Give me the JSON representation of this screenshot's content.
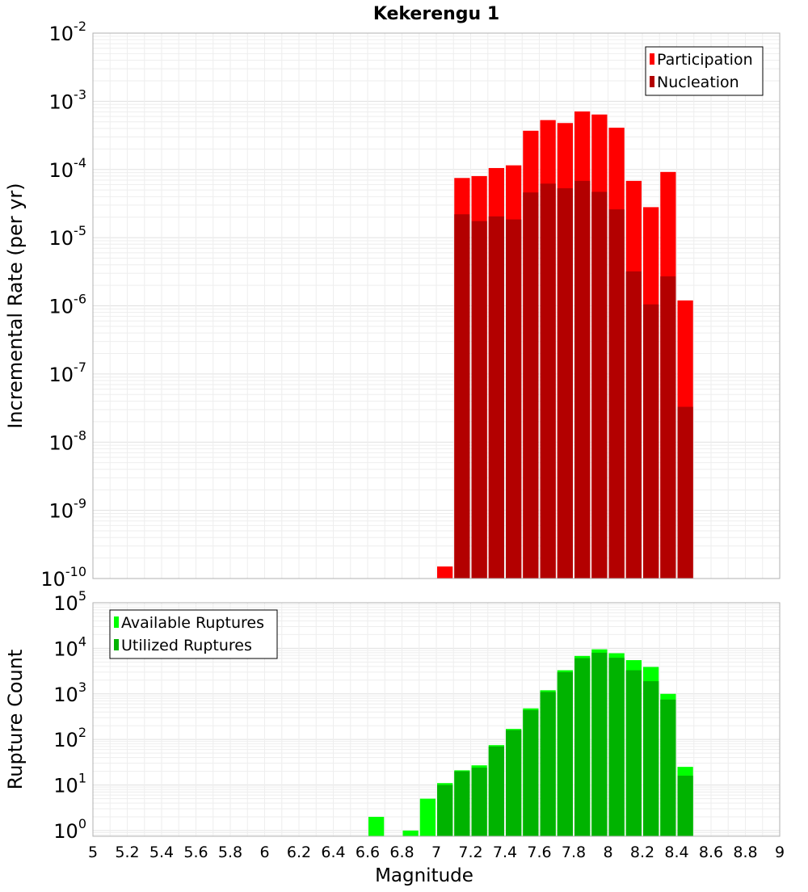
{
  "chart_data": [
    {
      "type": "bar",
      "title": "Kekerengu 1",
      "ylabel": "Incremental Rate (per yr)",
      "xlabel": "",
      "xlim": [
        5,
        9
      ],
      "ylim": [
        1e-10,
        0.01
      ],
      "yscale": "log",
      "bin_width": 0.1,
      "grid": true,
      "legend_position": "top-right",
      "y_tick_labels": [
        {
          "base": "10",
          "exp": "-10",
          "value": 1e-10
        },
        {
          "base": "10",
          "exp": "-9",
          "value": 1e-09
        },
        {
          "base": "10",
          "exp": "-8",
          "value": 1e-08
        },
        {
          "base": "10",
          "exp": "-7",
          "value": 1e-07
        },
        {
          "base": "10",
          "exp": "-6",
          "value": 1e-06
        },
        {
          "base": "10",
          "exp": "-5",
          "value": 1e-05
        },
        {
          "base": "10",
          "exp": "-4",
          "value": 0.0001
        },
        {
          "base": "10",
          "exp": "-3",
          "value": 0.001
        },
        {
          "base": "10",
          "exp": "-2",
          "value": 0.01
        }
      ],
      "series": [
        {
          "name": "Participation",
          "color": "#ff0000",
          "x": [
            7.05,
            7.15,
            7.25,
            7.35,
            7.45,
            7.55,
            7.65,
            7.75,
            7.85,
            7.95,
            8.05,
            8.15,
            8.25,
            8.35,
            8.45
          ],
          "values": [
            1.5e-10,
            7.5e-05,
            8e-05,
            0.000105,
            0.000115,
            0.00037,
            0.00053,
            0.00048,
            0.00071,
            0.00064,
            0.00041,
            6.8e-05,
            2.8e-05,
            9.2e-05,
            1.2e-06
          ]
        },
        {
          "name": "Nucleation",
          "color": "#b30000",
          "x": [
            7.15,
            7.25,
            7.35,
            7.45,
            7.55,
            7.65,
            7.75,
            7.85,
            7.95,
            8.05,
            8.15,
            8.25,
            8.35,
            8.45
          ],
          "values": [
            2.2e-05,
            1.75e-05,
            2.05e-05,
            1.85e-05,
            4.6e-05,
            6.2e-05,
            5.3e-05,
            6.8e-05,
            4.7e-05,
            2.6e-05,
            3.2e-06,
            1.05e-06,
            2.7e-06,
            3.3e-08
          ]
        }
      ]
    },
    {
      "type": "bar",
      "title": "",
      "ylabel": "Rupture Count",
      "xlabel": "Magnitude",
      "xlim": [
        5,
        9
      ],
      "ylim": [
        0.75,
        100000
      ],
      "yscale": "log",
      "bin_width": 0.1,
      "grid": true,
      "legend_position": "top-left",
      "x_tick_labels": [
        "5",
        "5.2",
        "5.4",
        "5.6",
        "5.8",
        "6",
        "6.2",
        "6.4",
        "6.6",
        "6.8",
        "7",
        "7.2",
        "7.4",
        "7.6",
        "7.8",
        "8",
        "8.2",
        "8.4",
        "8.6",
        "8.8",
        "9"
      ],
      "y_tick_labels": [
        {
          "base": "10",
          "exp": "0",
          "value": 1
        },
        {
          "base": "10",
          "exp": "1",
          "value": 10
        },
        {
          "base": "10",
          "exp": "2",
          "value": 100
        },
        {
          "base": "10",
          "exp": "3",
          "value": 1000
        },
        {
          "base": "10",
          "exp": "4",
          "value": 10000
        },
        {
          "base": "10",
          "exp": "5",
          "value": 100000
        }
      ],
      "series": [
        {
          "name": "Available Ruptures",
          "color": "#00ff00",
          "x": [
            6.65,
            6.85,
            6.95,
            7.05,
            7.15,
            7.25,
            7.35,
            7.45,
            7.55,
            7.65,
            7.75,
            7.85,
            7.95,
            8.05,
            8.15,
            8.25,
            8.35,
            8.45
          ],
          "values": [
            2,
            1,
            5,
            11,
            21,
            27,
            75,
            170,
            480,
            1200,
            3300,
            6800,
            9500,
            7800,
            5500,
            3900,
            1000,
            25
          ]
        },
        {
          "name": "Utilized Ruptures",
          "color": "#00b300",
          "x": [
            7.05,
            7.15,
            7.25,
            7.35,
            7.45,
            7.55,
            7.65,
            7.75,
            7.85,
            7.95,
            8.05,
            8.15,
            8.25,
            8.35,
            8.45
          ],
          "values": [
            10,
            20,
            24,
            70,
            160,
            440,
            1100,
            3000,
            6100,
            8000,
            6200,
            3300,
            1900,
            750,
            16
          ]
        }
      ]
    }
  ]
}
